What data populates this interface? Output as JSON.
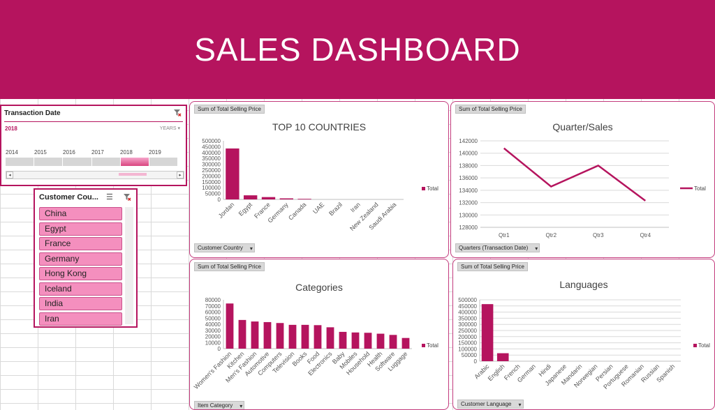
{
  "header": {
    "title": "SALES DASHBOARD"
  },
  "timeline": {
    "title": "Transaction Date",
    "selected": "2018",
    "level": "YEARS",
    "years": [
      "2014",
      "2015",
      "2016",
      "2017",
      "2018",
      "2019"
    ],
    "active_year": "2018"
  },
  "country_slicer": {
    "title": "Customer Cou...",
    "items": [
      "China",
      "Egypt",
      "France",
      "Germany",
      "Hong Kong",
      "Iceland",
      "India",
      "Iran"
    ]
  },
  "colors": {
    "accent": "#b5145e",
    "bar": "#b5145e",
    "slicer_item": "#f48fbe"
  },
  "panels": {
    "countries": {
      "value_button": "Sum of Total Selling Price",
      "filter_button": "Customer Country"
    },
    "quarters": {
      "value_button": "Sum of Total Selling Price",
      "filter_button": "Quarters (Transaction Date)"
    },
    "categories": {
      "value_button": "Sum of Total Selling Price",
      "filter_button": "Item Category"
    },
    "languages": {
      "value_button": "Sum of Total Selling Price",
      "filter_button": "Customer Language"
    }
  },
  "chart_data": [
    {
      "id": "countries",
      "type": "bar",
      "title": "TOP 10 COUNTRIES",
      "categories": [
        "Jordan",
        "Egypt",
        "France",
        "Germany",
        "Canada",
        "UAE",
        "Brazil",
        "Iran",
        "New Zealand",
        "Saudi Arabia"
      ],
      "series": [
        {
          "name": "Total",
          "values": [
            435000,
            35000,
            20000,
            9000,
            5000,
            0,
            0,
            0,
            0,
            0
          ]
        }
      ],
      "ylim": [
        0,
        500000
      ],
      "yticks": [
        0,
        50000,
        100000,
        150000,
        200000,
        250000,
        300000,
        350000,
        400000,
        450000,
        500000
      ],
      "grid": false,
      "legend": "right"
    },
    {
      "id": "quarters",
      "type": "line",
      "title": "Quarter/Sales",
      "categories": [
        "Qtr1",
        "Qtr2",
        "Qtr3",
        "Qtr4"
      ],
      "series": [
        {
          "name": "Total",
          "values": [
            140800,
            134600,
            138000,
            132300
          ]
        }
      ],
      "ylim": [
        128000,
        142000
      ],
      "yticks": [
        128000,
        130000,
        132000,
        134000,
        136000,
        138000,
        140000,
        142000
      ],
      "grid": true,
      "legend": "right"
    },
    {
      "id": "categories",
      "type": "bar",
      "title": "Categories",
      "categories": [
        "Women's Fashion",
        "Kitchen",
        "Men's Fashion",
        "Automotive",
        "Computers",
        "Television",
        "Books",
        "Food",
        "Electronics",
        "Baby",
        "Mobiles",
        "Household",
        "Health",
        "Software",
        "Luggage"
      ],
      "series": [
        {
          "name": "Total",
          "values": [
            74000,
            47000,
            44500,
            43500,
            42000,
            39000,
            39000,
            38500,
            35000,
            27500,
            26500,
            26000,
            24500,
            22500,
            17500
          ]
        }
      ],
      "ylim": [
        0,
        80000
      ],
      "yticks": [
        0,
        10000,
        20000,
        30000,
        40000,
        50000,
        60000,
        70000,
        80000
      ],
      "grid": false,
      "legend": "right"
    },
    {
      "id": "languages",
      "type": "bar",
      "title": "Languages",
      "categories": [
        "Arabic",
        "English",
        "French",
        "German",
        "Hindi",
        "Japanese",
        "Mandarin",
        "Norwegian",
        "Persian",
        "Portuguese",
        "Romanian",
        "Russian",
        "Spanish"
      ],
      "series": [
        {
          "name": "Total",
          "values": [
            465000,
            65000,
            0,
            0,
            0,
            0,
            0,
            0,
            0,
            0,
            0,
            0,
            0
          ]
        }
      ],
      "ylim": [
        0,
        500000
      ],
      "yticks": [
        0,
        50000,
        100000,
        150000,
        200000,
        250000,
        300000,
        350000,
        400000,
        450000,
        500000
      ],
      "grid": true,
      "legend": "right"
    }
  ]
}
